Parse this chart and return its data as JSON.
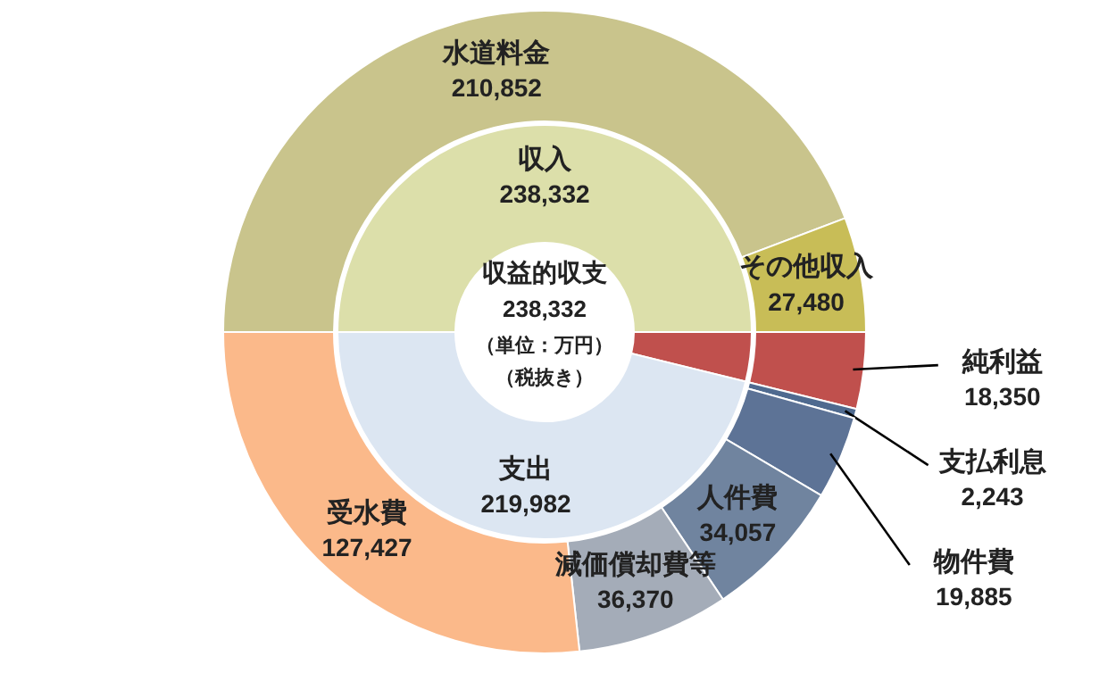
{
  "chart_data": [
    {
      "type": "donut",
      "title": "収益的収支",
      "subtitle": "238,332",
      "annotations": [
        "（単位：万円）",
        "（税抜き）"
      ],
      "categories": [
        "収入",
        null,
        "支出"
      ],
      "values": [
        238332,
        18350,
        219982
      ],
      "colors": [
        "#dcdfaa",
        "#c0504d",
        "#dce6f2"
      ],
      "value_labels": [
        "238,332",
        null,
        "219,982"
      ]
    },
    {
      "type": "donut",
      "categories": [
        "水道料金",
        "その他収入",
        "純利益",
        "支払利息",
        "物件費",
        "人件費",
        "減価償却費等",
        "受水費"
      ],
      "values": [
        210852,
        27480,
        18350,
        2243,
        19885,
        34057,
        36370,
        127427
      ],
      "colors": [
        "#c9c48c",
        "#c8bd57",
        "#c0504d",
        "#4f6a8f",
        "#5d7396",
        "#70849f",
        "#a4acb8",
        "#fbb98a"
      ],
      "value_labels": [
        "210,852",
        "27,480",
        "18,350",
        "2,243",
        "19,885",
        "34,057",
        "36,370",
        "127,427"
      ]
    }
  ]
}
